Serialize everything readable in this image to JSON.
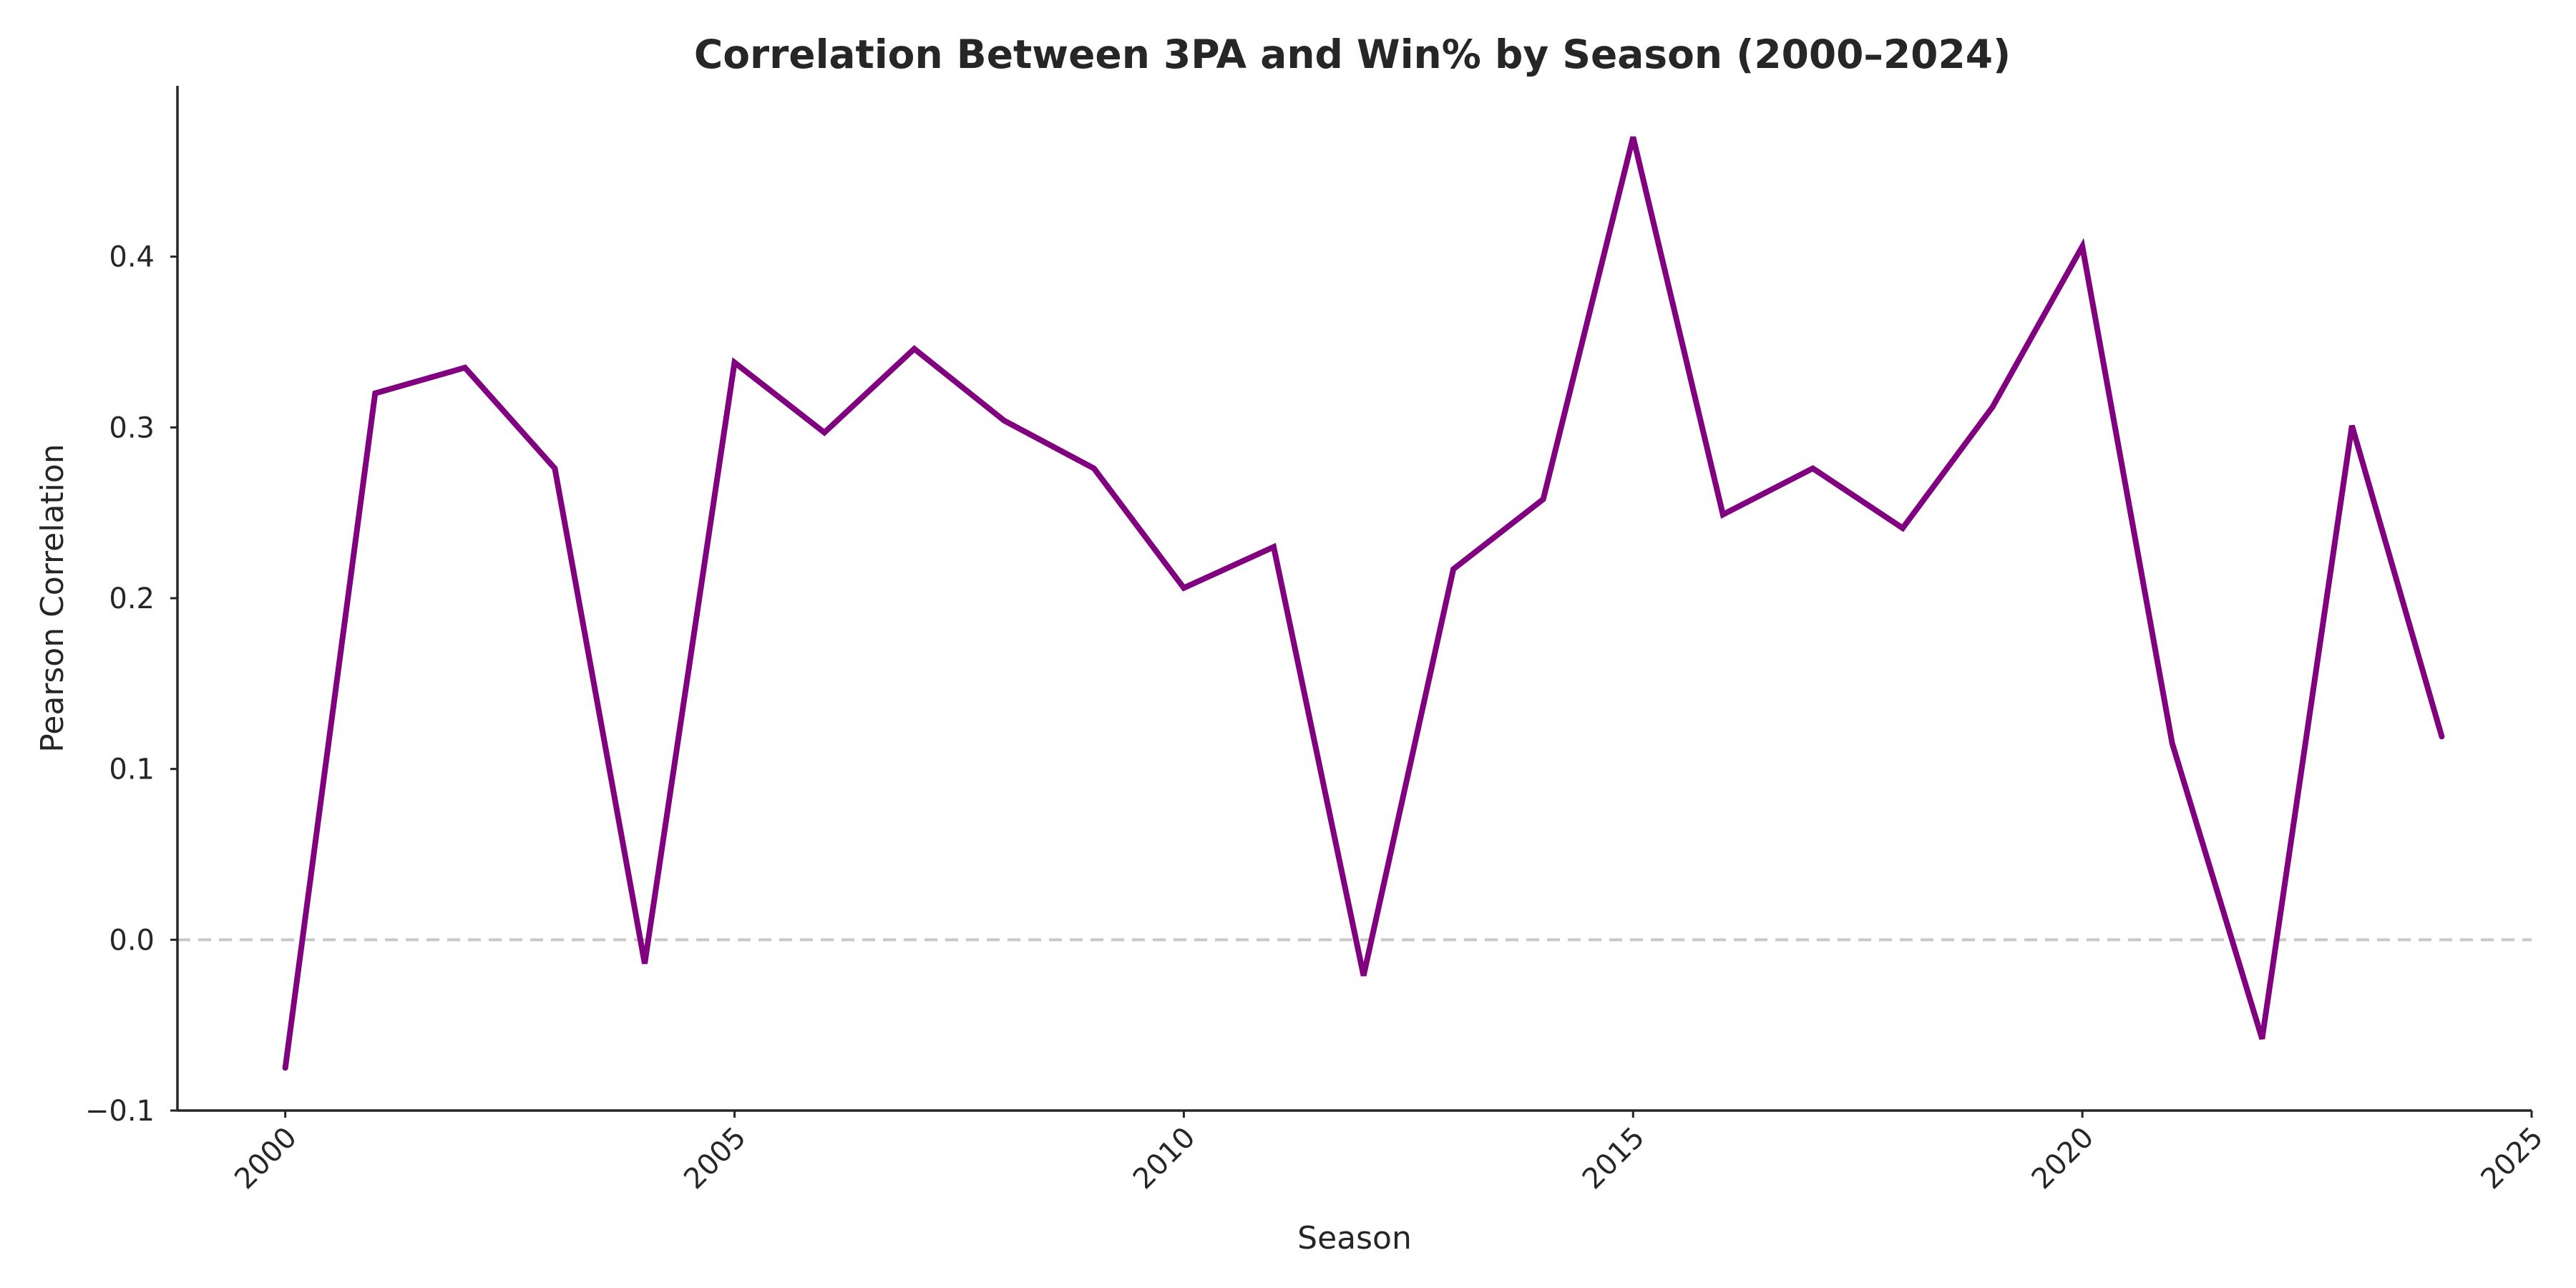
{
  "chart_data": {
    "type": "line",
    "title": "Correlation Between 3PA and Win% by Season (2000–2024)",
    "xlabel": "Season",
    "ylabel": "Pearson Correlation",
    "xlim": [
      1998.8,
      2025
    ],
    "ylim": [
      -0.1,
      0.5
    ],
    "x_ticks": [
      2000,
      2005,
      2010,
      2015,
      2020,
      2025
    ],
    "x_tick_labels": [
      "2000",
      "2005",
      "2010",
      "2015",
      "2020",
      "2025"
    ],
    "y_ticks": [
      -0.1,
      0.0,
      0.1,
      0.2,
      0.3,
      0.4
    ],
    "y_tick_labels": [
      "−0.1",
      "0.0",
      "0.1",
      "0.2",
      "0.3",
      "0.4"
    ],
    "grid": false,
    "reference_line": {
      "y": 0.0,
      "style": "dashed",
      "color": "#c8c8cc"
    },
    "line_color": "#800080",
    "series": [
      {
        "x": [
          2000,
          2001,
          2002,
          2003,
          2004,
          2005,
          2006,
          2007,
          2008,
          2009,
          2010,
          2011,
          2012,
          2013,
          2014,
          2015,
          2016,
          2017,
          2018,
          2019,
          2020,
          2021,
          2022,
          2023,
          2024
        ],
        "values": [
          -0.075,
          0.32,
          0.335,
          0.276,
          -0.014,
          0.338,
          0.297,
          0.346,
          0.304,
          0.276,
          0.206,
          0.23,
          -0.021,
          0.217,
          0.258,
          0.47,
          0.249,
          0.276,
          0.241,
          0.312,
          0.406,
          0.115,
          -0.058,
          0.301,
          0.119
        ]
      }
    ]
  }
}
